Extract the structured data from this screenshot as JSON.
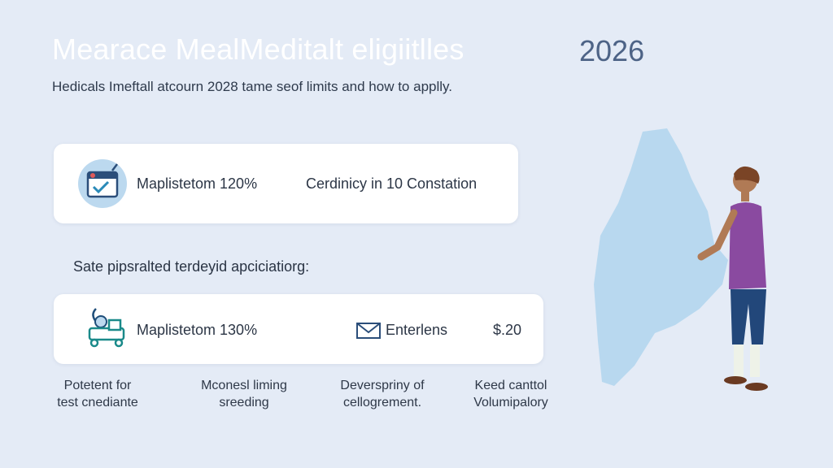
{
  "header": {
    "title": "Mearace MealMeditalt eligiitlles",
    "year": "2026",
    "subtitle": "Hedicals Imeftall atcourn 2028  tame seof limits and how to applly."
  },
  "card1": {
    "label": "Maplistetom 120%",
    "text": "Cerdinicy in 10 Constation"
  },
  "section_label": "Sate pipsralted terdeyid apciciatiorg:",
  "card2": {
    "label": "Maplistetom 130%",
    "text": "Enterlens",
    "amount": "$.20"
  },
  "footer": [
    {
      "lines": [
        "Potetent for",
        "test cnediante"
      ]
    },
    {
      "lines": [
        "Mconesl liming",
        "sreeding"
      ]
    },
    {
      "lines": [
        "Deverspriny of",
        "cellogrement."
      ]
    },
    {
      "lines": [
        "Keed canttol",
        "Volumipalory"
      ]
    }
  ]
}
